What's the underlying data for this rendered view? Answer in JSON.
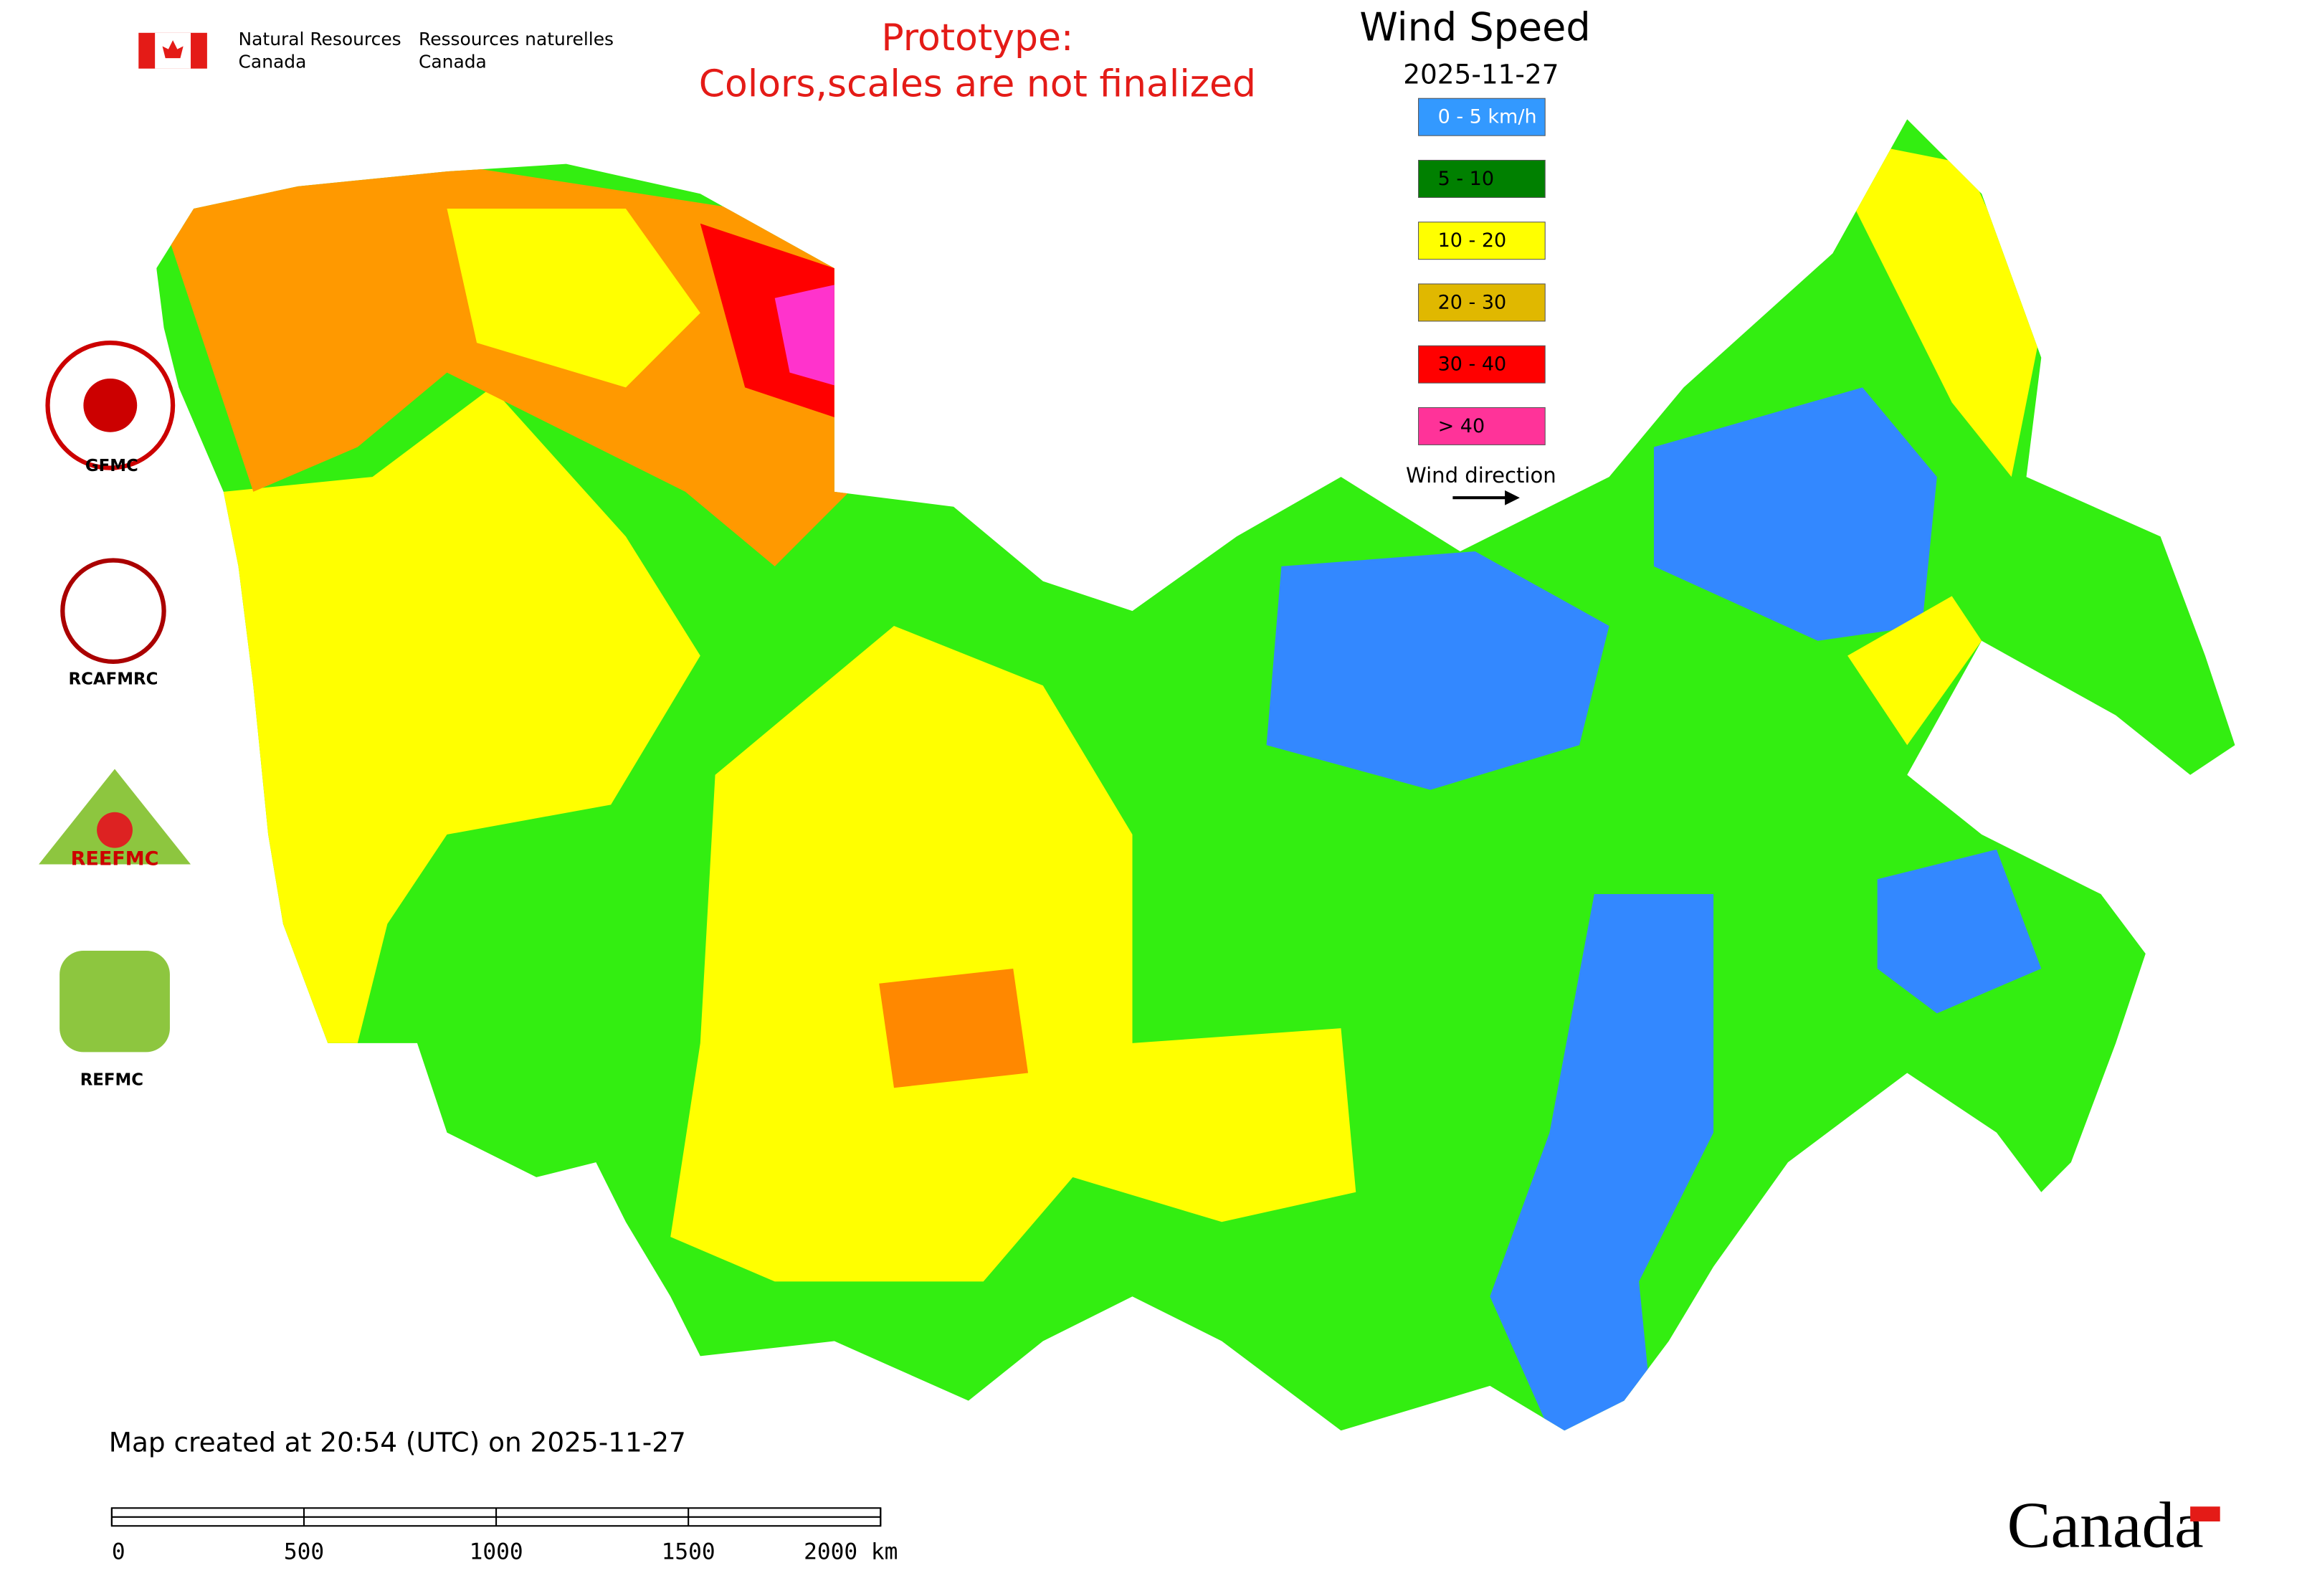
{
  "header": {
    "org_en": [
      "Natural Resources",
      "Canada"
    ],
    "org_fr": [
      "Ressources naturelles",
      "Canada"
    ],
    "notice": [
      "Prototype:",
      "Colors,scales are not finalized"
    ]
  },
  "legend": {
    "title": "Wind Speed",
    "date": "2025-11-27",
    "items": [
      {
        "label": "0 - 5 km/h",
        "color": "#3399ff"
      },
      {
        "label": "5 - 10",
        "color": "#008000"
      },
      {
        "label": "10 - 20",
        "color": "#ffff00"
      },
      {
        "label": "20 - 30",
        "color": "#e0b800"
      },
      {
        "label": "30 - 40",
        "color": "#ff0000"
      },
      {
        "label": "> 40",
        "color": "#ff3399"
      }
    ],
    "wind_direction": "Wind direction"
  },
  "logos": [
    {
      "label": "GFMC"
    },
    {
      "label": "RCAFMRC"
    },
    {
      "label": "REEFMC"
    },
    {
      "label": "REFMC"
    }
  ],
  "footer": {
    "created": "Map created at 20:54 (UTC) on 2025-11-27",
    "scale_labels": [
      "0",
      "500",
      "1000",
      "1500",
      "2000 km"
    ],
    "wordmark": "Canada"
  }
}
